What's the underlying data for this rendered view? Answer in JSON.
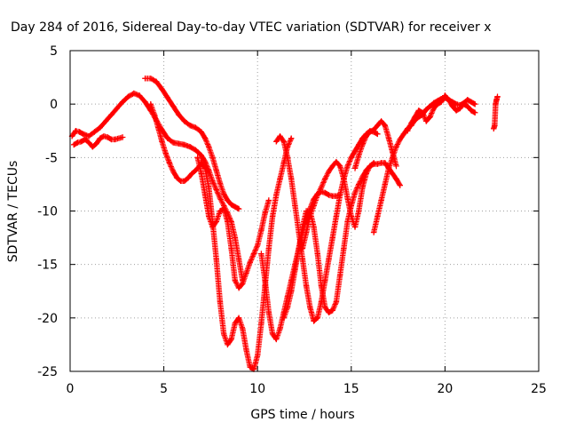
{
  "chart_data": {
    "type": "scatter",
    "title": "Day 284 of 2016, Sidereal Day-to-day VTEC variation (SDTVAR) for receiver x",
    "xlabel": "GPS time / hours",
    "ylabel": "SDTVAR / TECUs",
    "xlim": [
      0,
      25
    ],
    "ylim": [
      -25,
      5
    ],
    "xticks": [
      0,
      5,
      10,
      15,
      20,
      25
    ],
    "yticks": [
      -25,
      -20,
      -15,
      -10,
      -5,
      0,
      5
    ],
    "grid": true,
    "legend": "none",
    "marker": "plus",
    "color": "#ff0000",
    "series": [
      {
        "x": [
          0.1,
          0.3,
          0.5,
          0.7,
          1.0,
          1.3,
          1.6,
          1.9,
          2.2,
          2.5,
          2.8,
          3.1,
          3.4,
          3.7,
          4.0,
          4.3,
          4.6,
          4.9,
          5.2,
          5.5,
          5.8,
          6.1,
          6.4,
          6.7,
          7.0,
          7.2,
          7.4,
          7.6,
          7.8,
          8.0,
          8.2,
          8.4,
          8.6,
          8.8,
          9.0,
          9.2
        ],
        "y": [
          -3.0,
          -2.5,
          -2.6,
          -2.8,
          -3.0,
          -2.6,
          -2.2,
          -1.6,
          -1.0,
          -0.4,
          0.2,
          0.7,
          1.0,
          0.8,
          0.2,
          -0.6,
          -1.5,
          -2.4,
          -3.2,
          -3.6,
          -3.7,
          -3.8,
          -4.0,
          -4.3,
          -4.8,
          -5.4,
          -6.2,
          -7.2,
          -8.0,
          -8.8,
          -9.5,
          -10.2,
          -11.0,
          -12.5,
          -14.5,
          -16.5
        ]
      },
      {
        "x": [
          4.0,
          4.3,
          4.6,
          4.9,
          5.2,
          5.5,
          5.8,
          6.1,
          6.4,
          6.7,
          7.0,
          7.2,
          7.4,
          7.6,
          7.8,
          8.0,
          8.2,
          8.4,
          8.6,
          8.8,
          9.0
        ],
        "y": [
          2.4,
          2.4,
          2.1,
          1.4,
          0.6,
          -0.2,
          -1.0,
          -1.6,
          -2.0,
          -2.2,
          -2.6,
          -3.2,
          -4.0,
          -5.0,
          -6.2,
          -7.4,
          -8.4,
          -9.0,
          -9.4,
          -9.6,
          -9.8
        ]
      },
      {
        "x": [
          4.3,
          4.5,
          4.7,
          4.9,
          5.1,
          5.3,
          5.5,
          5.7,
          5.9,
          6.1,
          6.3,
          6.5,
          6.7,
          6.9,
          7.0
        ],
        "y": [
          0.0,
          -1.0,
          -2.2,
          -3.5,
          -4.6,
          -5.5,
          -6.3,
          -6.9,
          -7.2,
          -7.2,
          -6.9,
          -6.5,
          -6.2,
          -5.8,
          -5.6
        ]
      },
      {
        "x": [
          7.0,
          7.2,
          7.4,
          7.6,
          7.8,
          8.0,
          8.2,
          8.4,
          8.6,
          8.8,
          9.0,
          9.2,
          9.4,
          9.6,
          9.8,
          10.0,
          10.2,
          10.4,
          10.6,
          10.8,
          11.0,
          11.2,
          11.4,
          11.6,
          11.8
        ],
        "y": [
          -5.4,
          -6.0,
          -7.8,
          -11.0,
          -14.5,
          -18.5,
          -21.5,
          -22.5,
          -22.0,
          -20.5,
          -20.0,
          -21.0,
          -23.0,
          -24.6,
          -24.8,
          -23.5,
          -20.5,
          -17.0,
          -13.5,
          -10.5,
          -8.5,
          -7.0,
          -5.5,
          -4.0,
          -3.2
        ]
      },
      {
        "x": [
          6.8,
          7.0,
          7.2,
          7.4,
          7.6,
          7.8,
          8.0,
          8.2,
          8.4,
          8.6,
          8.8,
          9.0,
          9.2,
          9.4,
          9.6,
          9.8,
          10.0,
          10.2,
          10.4,
          10.6
        ],
        "y": [
          -5.0,
          -6.5,
          -8.5,
          -10.5,
          -11.5,
          -11.0,
          -10.0,
          -9.8,
          -11.0,
          -13.5,
          -16.5,
          -17.2,
          -16.8,
          -15.8,
          -14.8,
          -14.0,
          -13.2,
          -11.8,
          -10.2,
          -9.0
        ]
      },
      {
        "x": [
          10.2,
          10.4,
          10.6,
          10.8,
          11.0,
          11.2,
          11.4,
          11.6,
          11.8,
          12.0,
          12.2,
          12.4,
          12.6,
          12.8,
          13.0,
          13.2,
          13.4,
          13.6,
          13.8,
          14.0,
          14.2,
          14.4
        ],
        "y": [
          -14.0,
          -16.5,
          -19.5,
          -21.5,
          -22.0,
          -21.0,
          -19.5,
          -18.0,
          -16.5,
          -15.0,
          -13.5,
          -12.0,
          -10.8,
          -9.8,
          -8.9,
          -8.4,
          -8.2,
          -8.3,
          -8.5,
          -8.6,
          -8.6,
          -8.5
        ]
      },
      {
        "x": [
          11.0,
          11.2,
          11.4,
          11.6,
          11.8,
          12.0,
          12.2,
          12.4,
          12.6,
          12.8,
          13.0,
          13.2,
          13.4,
          13.6,
          13.8,
          14.0,
          14.2,
          14.4,
          14.6,
          14.8,
          15.0,
          15.2,
          15.4,
          15.6,
          15.8,
          16.0,
          16.2,
          16.4
        ],
        "y": [
          -3.5,
          -3.0,
          -3.5,
          -5.0,
          -7.0,
          -9.5,
          -12.0,
          -14.5,
          -17.0,
          -19.0,
          -20.3,
          -20.0,
          -18.5,
          -16.5,
          -14.5,
          -12.5,
          -10.5,
          -8.5,
          -7.0,
          -5.8,
          -5.0,
          -4.4,
          -3.8,
          -3.2,
          -2.8,
          -2.5,
          -2.6,
          -2.8
        ]
      },
      {
        "x": [
          11.4,
          11.6,
          11.8,
          12.0,
          12.2,
          12.4,
          12.6,
          12.8,
          13.0,
          13.2,
          13.4,
          13.6,
          13.8,
          14.0,
          14.2,
          14.4,
          14.6,
          14.8,
          15.0,
          15.2,
          15.4,
          15.6,
          15.8,
          16.0,
          16.2,
          16.4,
          16.6,
          16.8,
          17.0,
          17.2,
          17.4,
          17.6
        ],
        "y": [
          -20.0,
          -19.0,
          -17.5,
          -15.5,
          -13.5,
          -11.5,
          -10.0,
          -10.0,
          -11.5,
          -14.0,
          -17.0,
          -19.0,
          -19.5,
          -19.3,
          -18.5,
          -16.0,
          -13.5,
          -11.0,
          -9.5,
          -8.3,
          -7.5,
          -6.8,
          -6.2,
          -5.8,
          -5.6,
          -5.6,
          -5.5,
          -5.5,
          -6.0,
          -6.5,
          -7.0,
          -7.6
        ]
      },
      {
        "x": [
          12.4,
          12.6,
          12.8,
          13.0,
          13.2,
          13.4,
          13.6,
          13.8,
          14.0,
          14.2,
          14.4,
          14.6,
          14.8,
          15.0,
          15.2,
          15.4,
          15.6,
          15.8,
          16.0,
          16.2
        ],
        "y": [
          -13.5,
          -12.0,
          -10.5,
          -9.5,
          -8.5,
          -7.8,
          -7.0,
          -6.3,
          -5.8,
          -5.4,
          -5.8,
          -7.0,
          -8.8,
          -10.5,
          -11.5,
          -10.0,
          -7.8,
          -6.5,
          -5.8,
          -5.5
        ]
      },
      {
        "x": [
          16.2,
          16.4,
          16.6,
          16.8,
          17.0,
          17.2,
          17.4,
          17.6,
          17.8,
          18.0,
          18.2,
          18.4,
          18.6,
          18.8,
          19.0,
          19.2,
          19.4,
          19.6,
          19.8,
          20.0,
          20.2,
          20.4,
          20.6,
          20.8,
          21.0,
          21.2,
          21.4,
          21.6
        ],
        "y": [
          -12.0,
          -10.5,
          -9.0,
          -7.5,
          -6.0,
          -5.0,
          -4.0,
          -3.3,
          -2.8,
          -2.3,
          -2.0,
          -1.5,
          -1.2,
          -1.0,
          -0.5,
          -0.2,
          0.1,
          0.3,
          0.5,
          0.6,
          0.4,
          0.2,
          0.0,
          -0.1,
          0.1,
          0.4,
          0.2,
          0.0
        ]
      },
      {
        "x": [
          15.2,
          15.4,
          15.6,
          15.8,
          16.0,
          16.2,
          16.4,
          16.6,
          16.8,
          17.0,
          17.2,
          17.4
        ],
        "y": [
          -6.0,
          -4.8,
          -3.8,
          -3.0,
          -2.6,
          -2.4,
          -2.0,
          -1.6,
          -2.0,
          -3.2,
          -4.5,
          -5.8
        ]
      },
      {
        "x": [
          18.0,
          18.2,
          18.4,
          18.6,
          18.8,
          19.0,
          19.2,
          19.4,
          19.6,
          19.8,
          20.0,
          20.2,
          20.4,
          20.6,
          20.8,
          21.0,
          21.2,
          21.4,
          21.6
        ],
        "y": [
          -2.5,
          -1.8,
          -1.2,
          -0.6,
          -0.8,
          -1.6,
          -1.2,
          -0.4,
          0.0,
          0.2,
          0.8,
          0.4,
          -0.2,
          -0.6,
          -0.4,
          0.0,
          -0.2,
          -0.6,
          -0.8
        ]
      },
      {
        "x": [
          0.2,
          0.4,
          0.6,
          0.8,
          1.0,
          1.2,
          1.4,
          1.6,
          1.8,
          2.0,
          2.2,
          2.4,
          2.6,
          2.8
        ],
        "y": [
          -3.8,
          -3.6,
          -3.5,
          -3.3,
          -3.6,
          -4.0,
          -3.7,
          -3.2,
          -3.0,
          -3.1,
          -3.3,
          -3.3,
          -3.2,
          -3.1
        ]
      },
      {
        "x": [
          22.6,
          22.65,
          22.7,
          22.75,
          22.8
        ],
        "y": [
          -2.3,
          -2.0,
          0.0,
          0.4,
          0.7
        ]
      }
    ]
  }
}
